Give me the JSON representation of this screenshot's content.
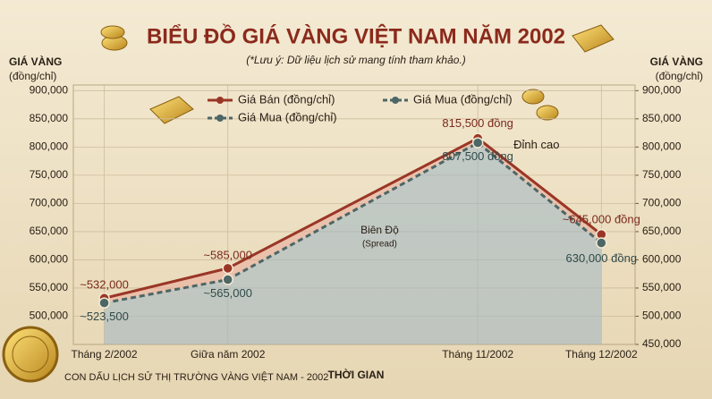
{
  "chart_data": {
    "type": "line",
    "title": "BIỂU ĐỒ GIÁ VÀNG VIỆT NAM NĂM 2002",
    "subtitle": "(*Lưu ý: Dữ liệu lịch sử mang tính tham khảo.)",
    "y_label": "GIÁ VÀNG",
    "y_unit": "(đồng/chỉ)",
    "y2_label": "GIÁ VÀNG",
    "y2_unit": "(đồng/chỉ)",
    "x_label": "THỜI GIAN",
    "categories": [
      "Tháng 2/2002",
      "Giữa năm 2002",
      "Tháng 11/2002",
      "Tháng 12/2002"
    ],
    "series": [
      {
        "name": "Giá Bán (đồng/chỉ)",
        "color": "#9a3626",
        "values": [
          532000,
          585000,
          815500,
          645000
        ],
        "value_labels": [
          "~532,000",
          "~585,000",
          "815,500 đồng",
          "~645,000 đồng"
        ]
      },
      {
        "name": "Giá Mua (đồng/chỉ)",
        "color": "#4d6666",
        "values": [
          523500,
          565000,
          807500,
          630000
        ],
        "value_labels": [
          "~523,500",
          "~565,000",
          "807,500 đồng",
          "630,000 đồng"
        ]
      }
    ],
    "ylim": [
      450000,
      910000
    ],
    "yticks": [
      {
        "value": 500000,
        "label": "500,000"
      },
      {
        "value": 550000,
        "label": "550,000"
      },
      {
        "value": 600000,
        "label": "600,000"
      },
      {
        "value": 650000,
        "label": "650,000"
      },
      {
        "value": 700000,
        "label": "700,000"
      },
      {
        "value": 750000,
        "label": "750,000"
      },
      {
        "value": 800000,
        "label": "800,000"
      },
      {
        "value": 850000,
        "label": "850,000"
      },
      {
        "value": 900000,
        "label": "900,000"
      }
    ],
    "y2lim": [
      450000,
      910000
    ],
    "y2ticks": [
      {
        "value": 450000,
        "label": "450,000"
      },
      {
        "value": 500000,
        "label": "500,000"
      },
      {
        "value": 550000,
        "label": "550,000"
      },
      {
        "value": 600000,
        "label": "600,000"
      },
      {
        "value": 650000,
        "label": "650,000"
      },
      {
        "value": 700000,
        "label": "700,000"
      },
      {
        "value": 750000,
        "label": "750,000"
      },
      {
        "value": 800000,
        "label": "800,000"
      },
      {
        "value": 850000,
        "label": "850,000"
      },
      {
        "value": 900000,
        "label": "900,000"
      }
    ],
    "grid": true,
    "annotations": {
      "peak": "Đỉnh cao",
      "spread": "Biên Độ",
      "spread_note": "(Spread)"
    },
    "footer": "CON DẤU LỊCH SỬ THỊ TRƯỜNG VÀNG VIỆT NAM - 2002"
  }
}
